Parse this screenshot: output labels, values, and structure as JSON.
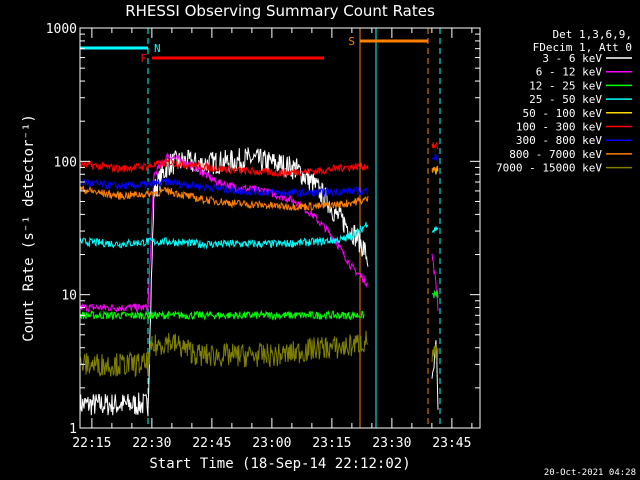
{
  "chart_data": {
    "type": "line",
    "title": "RHESSI Observing Summary Count Rates",
    "xlabel": "Start Time (18-Sep-14 22:12:02)",
    "ylabel": "Count Rate (s⁻¹ detector⁻¹)",
    "ylim": [
      1,
      1000
    ],
    "yscale": "log",
    "y_ticks": [
      "1",
      "10",
      "100",
      "1000"
    ],
    "xlim_minutes": [
      0,
      100
    ],
    "x_ticks": [
      "22:15",
      "22:30",
      "22:45",
      "23:00",
      "23:15",
      "23:30",
      "23:45"
    ],
    "legend_header": [
      "Det 1,3,6,9,",
      "FDecim 1, Att 0"
    ],
    "legend_position": "right",
    "footer_date": "20-Oct-2021 04:28",
    "x_unit": "minutes after 22:12:02",
    "series": [
      {
        "name": "3 - 6 keV",
        "color": "#ffffff",
        "x": [
          0,
          17,
          18.5,
          22,
          26,
          30,
          34,
          38,
          42,
          46,
          50,
          54,
          58,
          62,
          64,
          66,
          68,
          70,
          71,
          72,
          73,
          87,
          88,
          89,
          89.5
        ],
        "y": [
          1.5,
          1.5,
          60,
          95,
          100,
          95,
          98,
          100,
          105,
          100,
          95,
          88,
          70,
          50,
          40,
          35,
          30,
          25,
          22,
          18,
          null,
          null,
          2,
          4,
          1.5
        ]
      },
      {
        "name": "6 - 12 keV",
        "color": "#ff00ff",
        "x": [
          0,
          17,
          18.5,
          22,
          26,
          30,
          34,
          38,
          42,
          46,
          50,
          54,
          58,
          62,
          64,
          66,
          68,
          70,
          71,
          72,
          73,
          87,
          88,
          89,
          89.5
        ],
        "y": [
          8,
          8,
          80,
          110,
          100,
          85,
          70,
          65,
          62,
          60,
          55,
          50,
          40,
          30,
          25,
          20,
          16,
          14,
          13,
          12,
          null,
          null,
          20,
          12,
          8
        ]
      },
      {
        "name": "12 - 25 keV",
        "color": "#00ff00",
        "x": [
          0,
          17,
          18,
          22,
          30,
          40,
          50,
          60,
          66,
          71,
          73,
          87,
          88,
          89.5
        ],
        "y": [
          7,
          7,
          7,
          7,
          7,
          7,
          7,
          7,
          7,
          7,
          null,
          null,
          10,
          10
        ]
      },
      {
        "name": "25 - 50 keV",
        "color": "#00ffff",
        "x": [
          0,
          10,
          18,
          22,
          30,
          40,
          50,
          60,
          66,
          70,
          72,
          73,
          87,
          88,
          89.5
        ],
        "y": [
          25,
          24,
          25,
          25,
          24,
          24,
          24,
          25,
          26,
          30,
          35,
          null,
          null,
          30,
          32
        ]
      },
      {
        "name": "50 - 100 keV",
        "color": "#ffd700",
        "x": [
          0,
          72,
          73,
          87,
          88,
          89.5
        ],
        "y": [
          null,
          65,
          null,
          null,
          85,
          85
        ]
      },
      {
        "name": "100 - 300 keV",
        "color": "#ff0000",
        "x": [
          0,
          5,
          10,
          17,
          22,
          30,
          40,
          50,
          60,
          66,
          72,
          73,
          87,
          88,
          89.5
        ],
        "y": [
          95,
          92,
          88,
          92,
          98,
          92,
          85,
          82,
          85,
          90,
          92,
          null,
          null,
          130,
          130
        ]
      },
      {
        "name": "300 - 800 keV",
        "color": "#0000ff",
        "x": [
          0,
          5,
          10,
          17,
          22,
          30,
          40,
          50,
          60,
          66,
          72,
          73,
          87,
          88,
          89.5
        ],
        "y": [
          70,
          67,
          65,
          67,
          70,
          65,
          60,
          58,
          58,
          60,
          60,
          null,
          null,
          110,
          105
        ]
      },
      {
        "name": "800 - 7000 keV",
        "color": "#ff8000",
        "x": [
          0,
          5,
          10,
          17,
          22,
          30,
          40,
          50,
          60,
          66,
          72,
          73,
          87,
          88,
          89.5
        ],
        "y": [
          62,
          58,
          55,
          57,
          60,
          52,
          48,
          46,
          46,
          48,
          52,
          null,
          null,
          90,
          90
        ]
      },
      {
        "name": "7000 - 15000 keV",
        "color": "#808000",
        "x": [
          0,
          10,
          17,
          18,
          22,
          30,
          40,
          50,
          60,
          66,
          72,
          73,
          87,
          88,
          89.5
        ],
        "y": [
          3,
          3,
          3,
          4,
          4.5,
          3.5,
          3.5,
          3.5,
          4,
          4,
          4.5,
          null,
          null,
          3.5,
          3.5
        ]
      }
    ],
    "flags": [
      {
        "letter": "N",
        "color": "#00ffff",
        "x_start": 0,
        "x_end": 17
      },
      {
        "letter": "F",
        "color": "#ff0000",
        "x_start": 18,
        "x_end": 61
      },
      {
        "letter": "S",
        "color": "#ff8000",
        "x_start": 70,
        "x_end": 87
      }
    ],
    "vertical_lines": [
      {
        "x": 17,
        "color": "#00ffff",
        "style": "dashed"
      },
      {
        "x": 70,
        "color": "#ff8000",
        "style": "solid"
      },
      {
        "x": 74,
        "color": "#00ffff",
        "style": "solid"
      },
      {
        "x": 87,
        "color": "#ff8000",
        "style": "dashed"
      },
      {
        "x": 90,
        "color": "#00ffff",
        "style": "dashed"
      }
    ]
  }
}
